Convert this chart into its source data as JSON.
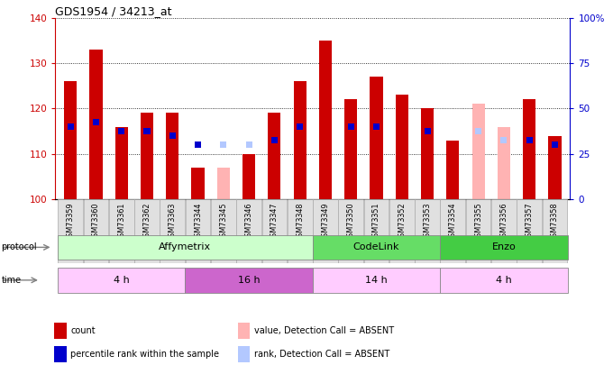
{
  "title": "GDS1954 / 34213_at",
  "samples": [
    "GSM73359",
    "GSM73360",
    "GSM73361",
    "GSM73362",
    "GSM73363",
    "GSM73344",
    "GSM73345",
    "GSM73346",
    "GSM73347",
    "GSM73348",
    "GSM73349",
    "GSM73350",
    "GSM73351",
    "GSM73352",
    "GSM73353",
    "GSM73354",
    "GSM73355",
    "GSM73356",
    "GSM73357",
    "GSM73358"
  ],
  "count_values": [
    126,
    133,
    116,
    119,
    119,
    107,
    null,
    110,
    119,
    126,
    135,
    122,
    127,
    123,
    120,
    113,
    null,
    null,
    122,
    114
  ],
  "count_absent": [
    null,
    null,
    null,
    null,
    null,
    null,
    107,
    null,
    null,
    null,
    null,
    null,
    null,
    null,
    null,
    null,
    121,
    116,
    null,
    null
  ],
  "rank_values": [
    116,
    117,
    115,
    115,
    114,
    112,
    null,
    112,
    113,
    116,
    null,
    116,
    116,
    null,
    115,
    null,
    null,
    null,
    113,
    112
  ],
  "rank_absent": [
    null,
    null,
    null,
    null,
    null,
    null,
    112,
    112,
    null,
    null,
    null,
    null,
    null,
    null,
    null,
    null,
    115,
    113,
    null,
    null
  ],
  "ylim_left": [
    100,
    140
  ],
  "ylim_right": [
    0,
    100
  ],
  "left_ticks": [
    100,
    110,
    120,
    130,
    140
  ],
  "right_ticks": [
    0,
    25,
    50,
    75,
    100
  ],
  "right_tick_labels": [
    "0",
    "25",
    "50",
    "75",
    "100%"
  ],
  "color_count": "#cc0000",
  "color_rank": "#0000cc",
  "color_count_absent": "#ffb3b3",
  "color_rank_absent": "#b3c8ff",
  "protocol_groups": [
    {
      "label": "Affymetrix",
      "start": 0,
      "end": 9,
      "color": "#ccffcc"
    },
    {
      "label": "CodeLink",
      "start": 10,
      "end": 14,
      "color": "#66dd66"
    },
    {
      "label": "Enzo",
      "start": 15,
      "end": 19,
      "color": "#44cc44"
    }
  ],
  "time_groups": [
    {
      "label": "4 h",
      "start": 0,
      "end": 4,
      "color": "#ffccff"
    },
    {
      "label": "16 h",
      "start": 5,
      "end": 9,
      "color": "#cc66cc"
    },
    {
      "label": "14 h",
      "start": 10,
      "end": 14,
      "color": "#ffccff"
    },
    {
      "label": "4 h",
      "start": 15,
      "end": 19,
      "color": "#ffccff"
    }
  ],
  "legend_items": [
    {
      "label": "count",
      "color": "#cc0000"
    },
    {
      "label": "percentile rank within the sample",
      "color": "#0000cc"
    },
    {
      "label": "value, Detection Call = ABSENT",
      "color": "#ffb3b3"
    },
    {
      "label": "rank, Detection Call = ABSENT",
      "color": "#b3c8ff"
    }
  ]
}
